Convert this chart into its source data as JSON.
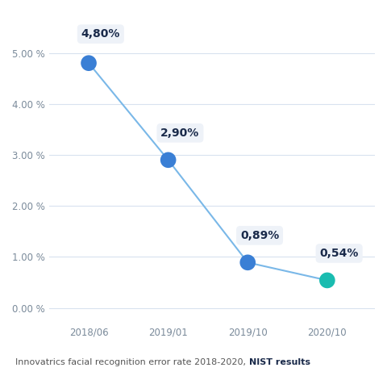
{
  "x_labels": [
    "2018/06",
    "2019/01",
    "2019/10",
    "2020/10"
  ],
  "x_positions": [
    0,
    1,
    2,
    3
  ],
  "y_values": [
    4.8,
    2.9,
    0.89,
    0.54
  ],
  "annotations": [
    "4,80%",
    "2,90%",
    "0,89%",
    "0,54%"
  ],
  "dot_colors": [
    "#3a7fd5",
    "#3a7fd5",
    "#3a7fd5",
    "#1abcb0"
  ],
  "line_color": "#7ab8e8",
  "dot_size": 200,
  "y_ticks": [
    0.0,
    1.0,
    2.0,
    3.0,
    4.0,
    5.0
  ],
  "y_tick_labels": [
    "0.00 %",
    "1.00 %",
    "2.00 %",
    "3.00 %",
    "4.00 %",
    "5.00 %"
  ],
  "ylim": [
    -0.3,
    5.8
  ],
  "xlim": [
    -0.5,
    3.6
  ],
  "annotation_box_color": "#eef2f8",
  "annotation_text_color": "#1a2a4a",
  "footer_normal": "Innovatrics facial recognition error rate 2018-2020, ",
  "footer_bold": "NIST results",
  "footer_bold_color": "#1a2a4a",
  "footer_normal_color": "#555555",
  "background_color": "#ffffff",
  "grid_color": "#d8e2ef",
  "ytick_color": "#7a8a9a",
  "xtick_color": "#7a8a9a"
}
